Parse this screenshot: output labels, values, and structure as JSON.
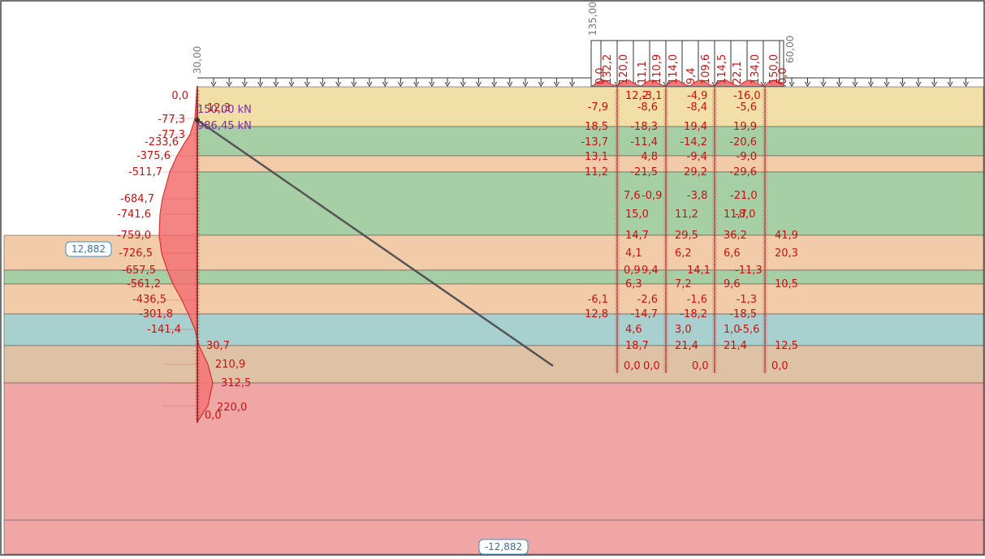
{
  "title": "",
  "colors": {
    "moment": "#d42020",
    "moment_fill": "#f47878",
    "anchor_text": "#7a2aa8",
    "label_text": "#cc1010",
    "anchor_line": "#555555",
    "level_badge_border": "#3c8fd0",
    "level_badge_text": "#3c6fa0"
  },
  "layers": [
    {
      "name": "layer-1",
      "color": "#f2dfa8"
    },
    {
      "name": "layer-2",
      "color": "#a7cfa5"
    },
    {
      "name": "layer-3",
      "color": "#f2cca8"
    },
    {
      "name": "layer-4",
      "color": "#a7cfa5"
    },
    {
      "name": "layer-5",
      "color": "#f2cca8"
    },
    {
      "name": "layer-6",
      "color": "#a7cfa5"
    },
    {
      "name": "layer-7",
      "color": "#f2cca8"
    },
    {
      "name": "layer-8",
      "color": "#a8d0cf"
    },
    {
      "name": "layer-9",
      "color": "#dfc2a5"
    },
    {
      "name": "layer-10",
      "color": "#f1a6a6"
    }
  ],
  "levels": {
    "upper": "12,882",
    "lower": "-12,882"
  },
  "surcharge_labels": {
    "left_value": "30,00",
    "top_value": "135,00",
    "right_value": "60,00",
    "right_zero": "0,0",
    "left_zero": "0,0"
  },
  "anchor": {
    "force1": "150,00 kN",
    "force2": "986,45 kN",
    "overlap_label": "12,3"
  },
  "wall_moments": [
    {
      "value": "0,0"
    },
    {
      "value": "-77,3"
    },
    {
      "value": "-77,3"
    },
    {
      "value": "-233,6"
    },
    {
      "value": "-375,6"
    },
    {
      "value": "-511,7"
    },
    {
      "value": "-684,7"
    },
    {
      "value": "-741,6"
    },
    {
      "value": "-759,0"
    },
    {
      "value": "-726,5"
    },
    {
      "value": "-657,5"
    },
    {
      "value": "-561,2"
    },
    {
      "value": "-436,5"
    },
    {
      "value": "-301,8"
    },
    {
      "value": "-141,4"
    },
    {
      "value": "30,7"
    },
    {
      "value": "210,9"
    },
    {
      "value": "312,5"
    },
    {
      "value": "220,0"
    },
    {
      "value": "0,0"
    }
  ],
  "top_values": [
    "132,2",
    "120,0",
    "11,1",
    "110,9",
    "114,0",
    "9,4",
    "109,6",
    "114,5",
    "22,1",
    "134,0",
    "150,0"
  ],
  "pile_labels": [
    {
      "value": "12,2"
    },
    {
      "value": "-3,1"
    },
    {
      "value": "-4,9"
    },
    {
      "value": "-16,0"
    },
    {
      "value": "-7,9"
    },
    {
      "value": "-8,6"
    },
    {
      "value": "-8,4"
    },
    {
      "value": "-5,6"
    },
    {
      "value": "18,5"
    },
    {
      "value": "-18,3"
    },
    {
      "value": "19,4"
    },
    {
      "value": "19,9"
    },
    {
      "value": "-13,7"
    },
    {
      "value": "-11,4"
    },
    {
      "value": "-14,2"
    },
    {
      "value": "-20,6"
    },
    {
      "value": "13,1"
    },
    {
      "value": "4,8"
    },
    {
      "value": "-9,4"
    },
    {
      "value": "-9,0"
    },
    {
      "value": "11,2"
    },
    {
      "value": "-21,5"
    },
    {
      "value": "29,2"
    },
    {
      "value": "-29,6"
    },
    {
      "value": "7,6"
    },
    {
      "value": "-0,9"
    },
    {
      "value": "-3,8"
    },
    {
      "value": "-21,0"
    },
    {
      "value": "15,0"
    },
    {
      "value": "11,2"
    },
    {
      "value": "11,7"
    },
    {
      "value": "-8,0"
    },
    {
      "value": "14,7"
    },
    {
      "value": "29,5"
    },
    {
      "value": "36,2"
    },
    {
      "value": "41,9"
    },
    {
      "value": "4,1"
    },
    {
      "value": "6,2"
    },
    {
      "value": "6,6"
    },
    {
      "value": "20,3"
    },
    {
      "value": "0,9"
    },
    {
      "value": "9,4"
    },
    {
      "value": "14,1"
    },
    {
      "value": "-11,3"
    },
    {
      "value": "6,3"
    },
    {
      "value": "7,2"
    },
    {
      "value": "9,6"
    },
    {
      "value": "10,5"
    },
    {
      "value": "-6,1"
    },
    {
      "value": "-2,6"
    },
    {
      "value": "-1,6"
    },
    {
      "value": "-1,3"
    },
    {
      "value": "12,8"
    },
    {
      "value": "-14,7"
    },
    {
      "value": "-18,2"
    },
    {
      "value": "-18,5"
    },
    {
      "value": "4,6"
    },
    {
      "value": "3,0"
    },
    {
      "value": "1,0"
    },
    {
      "value": "-5,6"
    },
    {
      "value": "18,7"
    },
    {
      "value": "21,4"
    },
    {
      "value": "21,4"
    },
    {
      "value": "12,5"
    },
    {
      "value": "0,0"
    },
    {
      "value": "0,0"
    },
    {
      "value": "0,0"
    },
    {
      "value": "0,0"
    }
  ]
}
